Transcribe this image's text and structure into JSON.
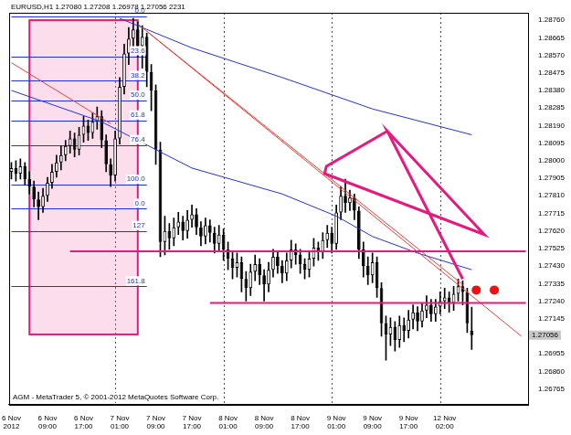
{
  "chart_data": {
    "type": "candlestick",
    "title": "EURUSD,H1 1.27080 1.27208 1.26978 1.27056 2231",
    "x": [
      "6 Nov 2012",
      null,
      null,
      null,
      null,
      null,
      null,
      null,
      "6 Nov 09:00",
      null,
      null,
      null,
      null,
      null,
      null,
      null,
      "6 Nov 17:00",
      null,
      null,
      null,
      null,
      null,
      null,
      null,
      "7 Nov 01:00",
      null,
      null,
      null,
      null,
      null,
      null,
      null,
      "7 Nov 09:00",
      null,
      null,
      null,
      null,
      null,
      null,
      null,
      "7 Nov 17:00",
      null,
      null,
      null,
      null,
      null,
      null,
      null,
      "8 Nov 01:00",
      null,
      null,
      null,
      null,
      null,
      null,
      null,
      "8 Nov 09:00",
      null,
      null,
      null,
      null,
      null,
      null,
      null,
      "8 Nov 17:00",
      null,
      null,
      null,
      null,
      null,
      null,
      null,
      "9 Nov 01:00",
      null,
      null,
      null,
      null,
      null,
      null,
      null,
      "9 Nov 09:00",
      null,
      null,
      null,
      null,
      null,
      null,
      null,
      "9 Nov 17:00",
      null,
      null,
      null,
      null,
      null,
      null,
      null,
      "12 Nov 02:00",
      null,
      null,
      null,
      null,
      null,
      null,
      null,
      null,
      null,
      null,
      null,
      null,
      null,
      null,
      null,
      null,
      null,
      null
    ],
    "open": [
      1.2794,
      1.2796,
      1.2793,
      1.2797,
      1.279,
      1.2786,
      1.2779,
      1.2775,
      1.2781,
      1.2788,
      1.2794,
      1.2799,
      1.2803,
      1.2808,
      1.2812,
      1.2806,
      1.2814,
      1.2819,
      1.2815,
      1.2821,
      1.2824,
      1.2811,
      1.2798,
      1.2792,
      1.2812,
      1.284,
      1.2858,
      1.2866,
      1.2871,
      1.2862,
      1.2867,
      1.2848,
      1.2838,
      1.2806,
      1.2756,
      1.2762,
      1.2758,
      1.2764,
      1.2767,
      1.2762,
      1.2768,
      1.2771,
      1.2764,
      1.2759,
      1.2765,
      1.2761,
      1.2755,
      1.276,
      1.2752,
      1.2747,
      1.2742,
      1.2745,
      1.2736,
      1.2731,
      1.274,
      1.2744,
      1.2738,
      1.2733,
      1.2741,
      1.2748,
      1.2743,
      1.2739,
      1.2746,
      1.2752,
      1.2749,
      1.2744,
      1.2741,
      1.2747,
      1.2753,
      1.2751,
      1.2757,
      1.2761,
      1.2755,
      1.2772,
      1.2781,
      1.2777,
      1.278,
      1.2773,
      1.2752,
      1.2743,
      1.2738,
      1.2745,
      1.2731,
      1.2712,
      1.2706,
      1.271,
      1.2703,
      1.2711,
      1.2708,
      1.2714,
      1.2718,
      1.2713,
      1.2719,
      1.2722,
      1.2717,
      1.2721,
      1.2724,
      1.2726,
      1.2723,
      1.2728,
      1.2732,
      1.2729,
      1.2708
    ],
    "high": [
      1.2799,
      1.28,
      1.2801,
      1.2799,
      1.2794,
      1.2789,
      1.2783,
      1.2785,
      1.2791,
      1.2798,
      1.2803,
      1.2808,
      1.2811,
      1.2816,
      1.2815,
      1.2818,
      1.2824,
      1.2822,
      1.2826,
      1.2829,
      1.2827,
      1.2814,
      1.2801,
      1.2816,
      1.2845,
      1.2863,
      1.2872,
      1.2877,
      1.2875,
      1.2873,
      1.2869,
      1.2852,
      1.2841,
      1.281,
      1.277,
      1.2766,
      1.2769,
      1.2772,
      1.277,
      1.2773,
      1.2776,
      1.2774,
      1.2767,
      1.2769,
      1.2768,
      1.2764,
      1.2765,
      1.2763,
      1.2756,
      1.2751,
      1.275,
      1.2748,
      1.274,
      1.2744,
      1.2749,
      1.2747,
      1.2741,
      1.2745,
      1.2752,
      1.2751,
      1.2746,
      1.275,
      1.2757,
      1.2755,
      1.2752,
      1.2747,
      1.2751,
      1.2758,
      1.2756,
      1.2761,
      1.2765,
      1.2764,
      1.2776,
      1.2786,
      1.279,
      1.2784,
      1.2782,
      1.2775,
      1.2756,
      1.2748,
      1.275,
      1.2748,
      1.2734,
      1.2716,
      1.2715,
      1.2713,
      1.2716,
      1.2715,
      1.2719,
      1.2722,
      1.2721,
      1.2723,
      1.2727,
      1.2725,
      1.2725,
      1.2729,
      1.2731,
      1.2729,
      1.2732,
      1.2736,
      1.2735,
      1.2731,
      1.27208
    ],
    "low": [
      1.279,
      1.2789,
      1.279,
      1.2787,
      1.2782,
      1.2775,
      1.2768,
      1.2772,
      1.2778,
      1.2785,
      1.2791,
      1.2795,
      1.28,
      1.2804,
      1.2802,
      1.2803,
      1.281,
      1.2811,
      1.2812,
      1.2817,
      1.2807,
      1.2794,
      1.2786,
      1.2789,
      1.2809,
      1.2836,
      1.2852,
      1.286,
      1.2856,
      1.285,
      1.284,
      1.2827,
      1.2798,
      1.2748,
      1.2749,
      1.2752,
      1.2754,
      1.276,
      1.2757,
      1.2758,
      1.2764,
      1.276,
      1.2754,
      1.2755,
      1.2756,
      1.275,
      1.2751,
      1.2746,
      1.2741,
      1.2736,
      1.2737,
      1.2729,
      1.2724,
      1.2727,
      1.2735,
      1.2733,
      1.2724,
      1.2729,
      1.2737,
      1.2739,
      1.2734,
      1.2735,
      1.2742,
      1.2744,
      1.2739,
      1.2736,
      1.2737,
      1.2743,
      1.2746,
      1.2747,
      1.2753,
      1.275,
      1.2752,
      1.2768,
      1.2772,
      1.2773,
      1.2768,
      1.2747,
      1.2737,
      1.2733,
      1.2734,
      1.2726,
      1.2705,
      1.2692,
      1.27,
      1.2697,
      1.2699,
      1.2702,
      1.2704,
      1.2709,
      1.2708,
      1.271,
      1.2715,
      1.2713,
      1.2713,
      1.2717,
      1.272,
      1.2718,
      1.2719,
      1.2724,
      1.2722,
      1.2707,
      1.26978
    ],
    "close": [
      1.2796,
      1.2793,
      1.2797,
      1.279,
      1.2786,
      1.2779,
      1.2775,
      1.2781,
      1.2788,
      1.2794,
      1.2799,
      1.2803,
      1.2808,
      1.2812,
      1.2806,
      1.2814,
      1.2819,
      1.2815,
      1.2821,
      1.2824,
      1.2811,
      1.2798,
      1.2792,
      1.2812,
      1.284,
      1.2858,
      1.2866,
      1.2871,
      1.2862,
      1.2867,
      1.2848,
      1.2838,
      1.2806,
      1.2756,
      1.2762,
      1.2758,
      1.2764,
      1.2767,
      1.2762,
      1.2768,
      1.2771,
      1.2764,
      1.2759,
      1.2765,
      1.2761,
      1.2755,
      1.276,
      1.2752,
      1.2747,
      1.2742,
      1.2745,
      1.2736,
      1.2731,
      1.274,
      1.2744,
      1.2738,
      1.2733,
      1.2741,
      1.2748,
      1.2743,
      1.2739,
      1.2746,
      1.2752,
      1.2749,
      1.2744,
      1.2741,
      1.2747,
      1.2753,
      1.2751,
      1.2757,
      1.2761,
      1.2755,
      1.2772,
      1.2781,
      1.2777,
      1.278,
      1.2773,
      1.2752,
      1.2743,
      1.2738,
      1.2745,
      1.2731,
      1.2712,
      1.2706,
      1.271,
      1.2703,
      1.2711,
      1.2708,
      1.2714,
      1.2718,
      1.2713,
      1.2719,
      1.2722,
      1.2717,
      1.2721,
      1.2724,
      1.2726,
      1.2723,
      1.2728,
      1.2732,
      1.2729,
      1.2712,
      1.27056
    ],
    "color": "#000000",
    "ylim": [
      1.2668,
      1.288
    ],
    "yticks": [
      {
        "value": 1.2876,
        "label": "1.28760"
      },
      {
        "value": 1.28665,
        "label": "1.28665"
      },
      {
        "value": 1.2857,
        "label": "1.28570"
      },
      {
        "value": 1.28475,
        "label": "1.28475"
      },
      {
        "value": 1.2838,
        "label": "1.28380"
      },
      {
        "value": 1.28285,
        "label": "1.28285"
      },
      {
        "value": 1.2819,
        "label": "1.28190"
      },
      {
        "value": 1.28095,
        "label": "1.28095"
      },
      {
        "value": 1.28,
        "label": "1.28000"
      },
      {
        "value": 1.27905,
        "label": "1.27905"
      },
      {
        "value": 1.2781,
        "label": "1.27810"
      },
      {
        "value": 1.27715,
        "label": "1.27715"
      },
      {
        "value": 1.2762,
        "label": "1.27620"
      },
      {
        "value": 1.27525,
        "label": "1.27525"
      },
      {
        "value": 1.2743,
        "label": "1.27430"
      },
      {
        "value": 1.27335,
        "label": "1.27335"
      },
      {
        "value": 1.2724,
        "label": "1.27240"
      },
      {
        "value": 1.27145,
        "label": "1.27145"
      },
      {
        "value": 1.26955,
        "label": "1.26955"
      },
      {
        "value": 1.2686,
        "label": "1.26860"
      },
      {
        "value": 1.26765,
        "label": "1.26765"
      }
    ],
    "grid": false,
    "day_separators": [
      23,
      47,
      71,
      95
    ],
    "moving_averages": [
      {
        "color": "#2233dd",
        "points": [
          [
            0,
            1.2838
          ],
          [
            20,
            1.2821
          ],
          [
            40,
            1.2796
          ],
          [
            60,
            1.2782
          ],
          [
            72,
            1.277
          ],
          [
            80,
            1.2759
          ],
          [
            90,
            1.275
          ],
          [
            102,
            1.2741
          ]
        ]
      },
      {
        "color": "#2233dd",
        "points": [
          [
            24,
            1.2877
          ],
          [
            40,
            1.2861
          ],
          [
            60,
            1.2845
          ],
          [
            80,
            1.2828
          ],
          [
            102,
            1.2814
          ]
        ]
      }
    ],
    "trendlines": [
      {
        "color": "#e8403a",
        "points": [
          [
            28,
            1.2874
          ],
          [
            113,
            1.2705
          ]
        ]
      },
      {
        "color": "#e8403a",
        "points": [
          [
            30,
            1.287
          ],
          [
            100,
            1.2733
          ]
        ]
      },
      {
        "color": "#e8403a",
        "points": [
          [
            0,
            1.2853
          ],
          [
            22,
            1.282
          ]
        ]
      }
    ],
    "horizontal_lines": [
      {
        "color": "#e6197e",
        "value": 1.2751,
        "from": 13,
        "to": 114
      },
      {
        "color": "#e6197e",
        "value": 1.2723,
        "from": 44,
        "to": 114
      }
    ],
    "fibonacci": [
      {
        "color": "#2233dd",
        "from": 0,
        "to": 30,
        "levels": [
          {
            "value": 1.2878,
            "label": "0.0"
          },
          {
            "value": 1.28565,
            "label": "23.6"
          },
          {
            "value": 1.28432,
            "label": "38.2"
          },
          {
            "value": 1.28325,
            "label": "50.0"
          },
          {
            "value": 1.28218,
            "label": "61.8"
          },
          {
            "value": 1.28085,
            "label": "76.4"
          },
          {
            "value": 1.2787,
            "label": "100.0"
          }
        ]
      },
      {
        "color": "#2233dd",
        "from": 0,
        "to": 30,
        "levels": [
          {
            "value": 1.2774,
            "label": "0.0"
          },
          {
            "value": 1.2762,
            "label": "127"
          },
          {
            "value": 1.2732,
            "label": "161.8"
          }
        ]
      }
    ],
    "rectangle": {
      "color": "#e6197e",
      "x": [
        4,
        28
      ],
      "y": [
        1.2706,
        1.2876
      ]
    },
    "shape": {
      "color": "#e6197e",
      "points": [
        [
          100,
          1.2736
        ],
        [
          83.3,
          1.2816
        ],
        [
          104.8,
          1.276
        ],
        [
          69.4,
          1.2793
        ],
        [
          69.8,
          1.2797
        ],
        [
          83.3,
          1.2816
        ]
      ]
    },
    "dots": {
      "color": "#ee1111",
      "points": [
        [
          103,
          1.273
        ],
        [
          107,
          1.273
        ]
      ]
    },
    "annotations": [
      {
        "text": "AGM - MetaTrader 5, © 2001-2012 MetaQuotes Software Corp."
      }
    ]
  }
}
